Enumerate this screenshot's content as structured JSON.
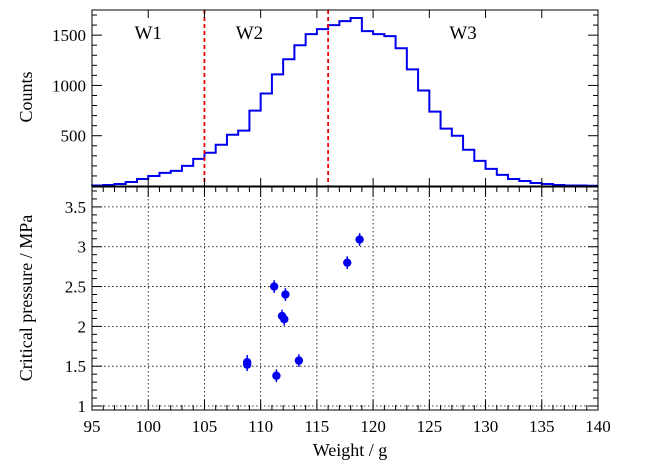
{
  "chart_data": [
    {
      "type": "histogram",
      "ylabel": "Counts",
      "xlim": [
        95,
        140
      ],
      "ylim": [
        0,
        1750
      ],
      "yticks": [
        500,
        1000,
        1500
      ],
      "bin_edges": [
        95,
        96,
        97,
        98,
        99,
        100,
        101,
        102,
        103,
        104,
        105,
        106,
        107,
        108,
        109,
        110,
        111,
        112,
        113,
        114,
        115,
        116,
        117,
        118,
        119,
        120,
        121,
        122,
        123,
        124,
        125,
        126,
        127,
        128,
        129,
        130,
        131,
        132,
        133,
        134,
        135,
        136,
        137,
        138,
        139,
        140
      ],
      "counts": [
        5,
        10,
        20,
        40,
        70,
        100,
        130,
        150,
        200,
        270,
        330,
        410,
        510,
        550,
        750,
        920,
        1110,
        1260,
        1400,
        1510,
        1560,
        1600,
        1640,
        1670,
        1540,
        1510,
        1490,
        1370,
        1160,
        950,
        740,
        570,
        500,
        360,
        250,
        170,
        110,
        70,
        50,
        30,
        20,
        10,
        5,
        5,
        2
      ],
      "cuts": [
        105,
        116
      ],
      "windows": [
        {
          "label": "W1",
          "x": 100
        },
        {
          "label": "W2",
          "x": 109
        },
        {
          "label": "W3",
          "x": 128
        }
      ],
      "line_color": "#0000ee",
      "cut_color": "#ee0000"
    },
    {
      "type": "scatter",
      "xlabel": "Weight / g",
      "ylabel": "Critical pressure / MPa",
      "xlim": [
        95,
        140
      ],
      "ylim": [
        0.95,
        3.75
      ],
      "xticks": [
        95,
        100,
        105,
        110,
        115,
        120,
        125,
        130,
        135,
        140
      ],
      "yticks": [
        "1",
        "1.5",
        "2",
        "2.5",
        "3",
        "3.5"
      ],
      "points": [
        {
          "x": 108.8,
          "y": 1.55,
          "err": 0.09
        },
        {
          "x": 108.8,
          "y": 1.52,
          "err": 0.08
        },
        {
          "x": 111.2,
          "y": 2.5,
          "err": 0.08
        },
        {
          "x": 111.4,
          "y": 1.38,
          "err": 0.08
        },
        {
          "x": 111.9,
          "y": 2.13,
          "err": 0.08
        },
        {
          "x": 112.1,
          "y": 2.09,
          "err": 0.08
        },
        {
          "x": 112.2,
          "y": 2.4,
          "err": 0.08
        },
        {
          "x": 113.4,
          "y": 1.57,
          "err": 0.08
        },
        {
          "x": 117.7,
          "y": 2.8,
          "err": 0.08
        },
        {
          "x": 118.8,
          "y": 3.09,
          "err": 0.08
        }
      ],
      "marker_color": "#0000ee",
      "grid": true
    }
  ]
}
